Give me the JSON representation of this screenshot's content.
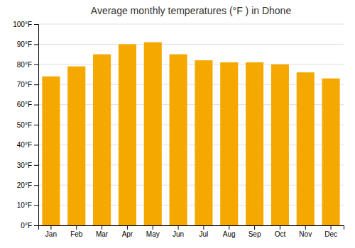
{
  "chart_data": {
    "type": "bar",
    "title": "Average monthly temperatures (°F ) in Dhone",
    "categories": [
      "Jan",
      "Feb",
      "Mar",
      "Apr",
      "May",
      "Jun",
      "Jul",
      "Aug",
      "Sep",
      "Oct",
      "Nov",
      "Dec"
    ],
    "values": [
      74,
      79,
      85,
      90,
      91,
      85,
      82,
      81,
      81,
      80,
      76,
      73
    ],
    "color": "#F5A800",
    "ylim": [
      0,
      100
    ],
    "yticks": [
      {
        "value": 0,
        "label": "0°F"
      },
      {
        "value": 10,
        "label": "10°F"
      },
      {
        "value": 20,
        "label": "20°F"
      },
      {
        "value": 30,
        "label": "30°F"
      },
      {
        "value": 40,
        "label": "40°F"
      },
      {
        "value": 50,
        "label": "50°F"
      },
      {
        "value": 60,
        "label": "60°F"
      },
      {
        "value": 70,
        "label": "70°F"
      },
      {
        "value": 80,
        "label": "80°F"
      },
      {
        "value": 90,
        "label": "90°F"
      },
      {
        "value": 100,
        "label": "100°F"
      }
    ],
    "grid": true
  }
}
